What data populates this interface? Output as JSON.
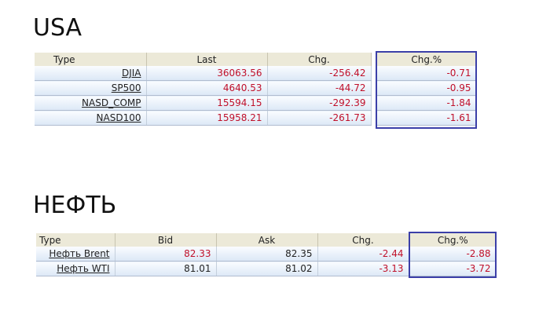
{
  "sections": [
    {
      "title": "USA",
      "table": {
        "header": [
          "Type",
          "Last",
          "Chg.",
          "Chg.%"
        ],
        "rows": [
          [
            "DJIA",
            "36063.56",
            "-256.42",
            "-0.71"
          ],
          [
            "SP500",
            "4640.53",
            "-44.72",
            "-0.95"
          ],
          [
            "NASD_COMP",
            "15594.15",
            "-292.39",
            "-1.84"
          ],
          [
            "NASD100",
            "15958.21",
            "-261.73",
            "-1.61"
          ]
        ]
      }
    },
    {
      "title": "НЕФТЬ",
      "table": {
        "header": [
          "Type",
          "Bid",
          "Ask",
          "Chg.",
          "Chg.%"
        ],
        "rows": [
          [
            "Нефть Brent",
            "82.33",
            "82.35",
            "-2.44",
            "-2.88"
          ],
          [
            "Нефть WTI",
            "81.01",
            "81.02",
            "-3.13",
            "-3.72"
          ]
        ]
      }
    }
  ]
}
